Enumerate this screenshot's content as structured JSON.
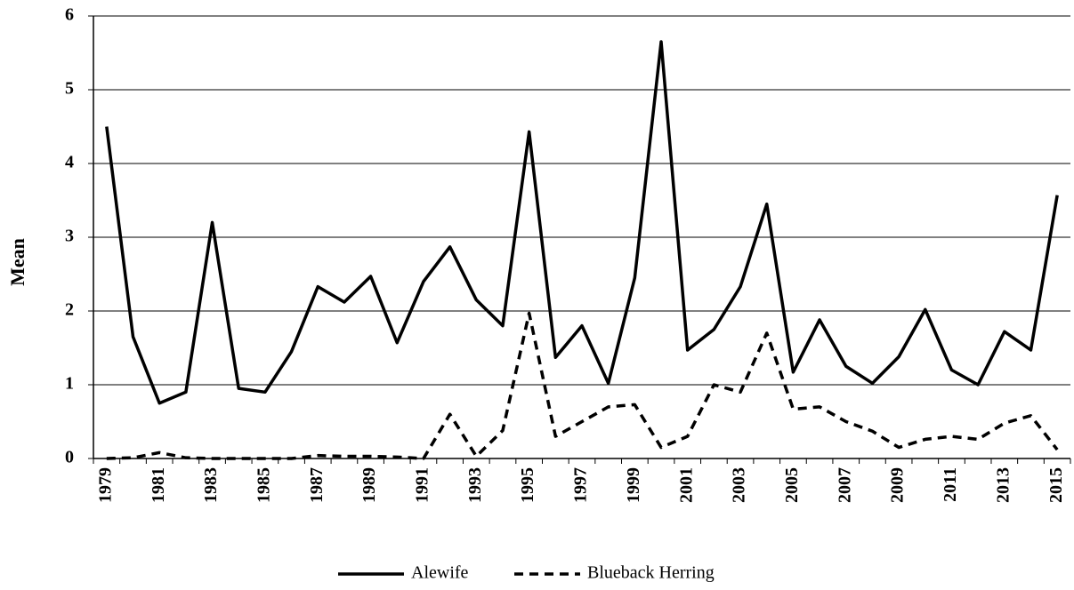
{
  "chart_data": {
    "type": "line",
    "y_label": "Mean",
    "categories": [
      "1979",
      null,
      "1981",
      null,
      "1983",
      null,
      "1985",
      null,
      "1987",
      null,
      "1989",
      null,
      "1991",
      null,
      "1993",
      null,
      "1995",
      null,
      "1997",
      null,
      "1999",
      null,
      "2001",
      null,
      "2003",
      null,
      "2005",
      null,
      "2007",
      null,
      "2009",
      null,
      "2011",
      null,
      "2013",
      null,
      "2015"
    ],
    "series": [
      {
        "name": "Alewife",
        "color": "#000000",
        "dashed": false,
        "values": [
          4.5,
          1.65,
          0.75,
          0.9,
          3.2,
          0.95,
          0.9,
          1.45,
          2.33,
          2.12,
          2.47,
          1.57,
          2.4,
          2.87,
          2.15,
          1.8,
          4.43,
          1.37,
          1.8,
          1.02,
          2.45,
          5.65,
          1.47,
          1.75,
          2.33,
          3.45,
          1.17,
          1.88,
          1.25,
          1.02,
          1.38,
          2.02,
          1.2,
          1.0,
          1.72,
          1.47,
          3.57
        ]
      },
      {
        "name": "Blueback Herring",
        "color": "#000000",
        "dashed": true,
        "values": [
          0,
          0.01,
          0.08,
          0.01,
          0,
          0,
          0,
          0,
          0.04,
          0.03,
          0.03,
          0.02,
          0,
          0.6,
          0.03,
          0.38,
          1.97,
          0.3,
          0.5,
          0.7,
          0.73,
          0.15,
          0.3,
          1.0,
          0.9,
          1.7,
          0.67,
          0.7,
          0.5,
          0.37,
          0.15,
          0.26,
          0.3,
          0.26,
          0.48,
          0.58,
          0.12
        ]
      }
    ],
    "ylim": [
      0,
      6
    ],
    "yticks": [
      0,
      1,
      2,
      3,
      4,
      5,
      6
    ],
    "grid": true,
    "legend": "bottom"
  }
}
